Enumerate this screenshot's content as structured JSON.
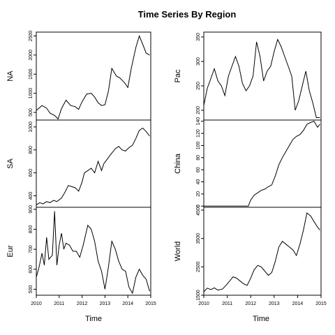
{
  "chart_data": {
    "type": "line",
    "title": "Time Series By Region",
    "xlabel": "Time",
    "xlim": [
      2010,
      2015
    ],
    "x_ticks": [
      2010,
      2011,
      2012,
      2013,
      2014,
      2015
    ],
    "x_tick_labels": [
      "2010",
      "2011",
      "2012",
      "2013",
      "2014",
      "2015"
    ],
    "columns": [
      {
        "panels": [
          {
            "ylabel": "NA",
            "ylim": [
              300,
              2600
            ],
            "y_ticks": [
              500,
              1000,
              1500,
              2000,
              2500
            ],
            "y_tick_labels": [
              "500",
              "1000",
              "1500",
              "2000",
              "2500"
            ],
            "x": [
              2010.0,
              2010.25,
              2010.45,
              2010.6,
              2010.8,
              2010.95,
              2011.1,
              2011.3,
              2011.5,
              2011.7,
              2011.85,
              2012.0,
              2012.2,
              2012.4,
              2012.55,
              2012.7,
              2012.85,
              2013.0,
              2013.15,
              2013.3,
              2013.5,
              2013.65,
              2013.85,
              2014.0,
              2014.15,
              2014.35,
              2014.5,
              2014.65,
              2014.8,
              2014.95
            ],
            "values": [
              550,
              680,
              610,
              480,
              420,
              330,
              600,
              820,
              680,
              650,
              580,
              780,
              980,
              1000,
              900,
              750,
              680,
              700,
              1050,
              1650,
              1450,
              1400,
              1280,
              1150,
              1650,
              2200,
              2500,
              2280,
              2050,
              2000
            ]
          },
          {
            "ylabel": "SA",
            "ylim": [
              300,
              1060
            ],
            "y_ticks": [
              400,
              600,
              800,
              1000
            ],
            "y_tick_labels": [
              "400",
              "600",
              "800",
              "1000"
            ],
            "x": [
              2010.0,
              2010.15,
              2010.3,
              2010.45,
              2010.6,
              2010.75,
              2010.9,
              2011.1,
              2011.25,
              2011.4,
              2011.55,
              2011.7,
              2011.85,
              2012.0,
              2012.1,
              2012.25,
              2012.4,
              2012.55,
              2012.7,
              2012.85,
              2012.95,
              2013.1,
              2013.25,
              2013.45,
              2013.6,
              2013.75,
              2013.9,
              2014.05,
              2014.2,
              2014.35,
              2014.5,
              2014.65,
              2014.8,
              2014.95
            ],
            "values": [
              320,
              340,
              330,
              350,
              340,
              360,
              350,
              380,
              430,
              490,
              480,
              470,
              440,
              520,
              600,
              620,
              640,
              600,
              700,
              620,
              680,
              720,
              760,
              810,
              830,
              800,
              790,
              820,
              840,
              900,
              970,
              990,
              960,
              920
            ]
          },
          {
            "ylabel": "Eur",
            "ylim": [
              470,
              910
            ],
            "y_ticks": [
              500,
              600,
              700,
              800,
              900
            ],
            "y_tick_labels": [
              "500",
              "600",
              "700",
              "800",
              "900"
            ],
            "x": [
              2010.0,
              2010.12,
              2010.25,
              2010.35,
              2010.45,
              2010.55,
              2010.7,
              2010.8,
              2010.9,
              2011.0,
              2011.1,
              2011.2,
              2011.3,
              2011.45,
              2011.6,
              2011.75,
              2011.9,
              2012.05,
              2012.25,
              2012.4,
              2012.55,
              2012.7,
              2012.85,
              2013.0,
              2013.15,
              2013.3,
              2013.45,
              2013.6,
              2013.75,
              2013.9,
              2014.05,
              2014.2,
              2014.35,
              2014.5,
              2014.65,
              2014.8,
              2014.95
            ],
            "values": [
              560,
              610,
              680,
              620,
              760,
              650,
              670,
              890,
              620,
              720,
              780,
              700,
              730,
              720,
              690,
              690,
              660,
              720,
              820,
              800,
              740,
              640,
              590,
              500,
              610,
              740,
              700,
              640,
              600,
              590,
              510,
              480,
              560,
              600,
              570,
              550,
              490
            ]
          }
        ]
      },
      {
        "panels": [
          {
            "ylabel": "Pac",
            "ylim": [
              180,
              360
            ],
            "y_ticks": [
              200,
              250,
              300,
              350
            ],
            "y_tick_labels": [
              "200",
              "250",
              "300",
              "350"
            ],
            "x": [
              2010.0,
              2010.15,
              2010.3,
              2010.45,
              2010.6,
              2010.75,
              2010.9,
              2011.05,
              2011.2,
              2011.35,
              2011.5,
              2011.65,
              2011.8,
              2011.95,
              2012.1,
              2012.25,
              2012.4,
              2012.55,
              2012.7,
              2012.85,
              2013.0,
              2013.15,
              2013.3,
              2013.45,
              2013.6,
              2013.75,
              2013.9,
              2014.05,
              2014.2,
              2014.35,
              2014.5,
              2014.65,
              2014.8,
              2014.95
            ],
            "values": [
              210,
              245,
              265,
              285,
              260,
              250,
              230,
              270,
              290,
              310,
              290,
              255,
              240,
              250,
              270,
              340,
              310,
              260,
              280,
              290,
              320,
              345,
              330,
              310,
              290,
              270,
              200,
              220,
              250,
              280,
              240,
              215,
              185,
              185
            ]
          },
          {
            "ylabel": "China",
            "ylim": [
              -2,
              142
            ],
            "y_ticks": [
              0,
              20,
              40,
              60,
              80,
              100,
              120,
              140
            ],
            "y_tick_labels": [
              "0",
              "20",
              "40",
              "60",
              "80",
              "100",
              "120",
              "140"
            ],
            "x": [
              2010.0,
              2011.5,
              2011.9,
              2012.0,
              2012.15,
              2012.3,
              2012.45,
              2012.6,
              2012.75,
              2012.9,
              2013.05,
              2013.2,
              2013.35,
              2013.5,
              2013.65,
              2013.8,
              2013.95,
              2014.1,
              2014.25,
              2014.4,
              2014.55,
              2014.7,
              2014.85,
              2014.95
            ],
            "values": [
              0,
              0,
              0,
              10,
              18,
              22,
              26,
              28,
              32,
              35,
              50,
              68,
              80,
              90,
              100,
              110,
              115,
              118,
              125,
              135,
              138,
              140,
              130,
              135
            ]
          },
          {
            "ylabel": "World",
            "ylim": [
              1500,
              4600
            ],
            "y_ticks": [
              1500,
              2500,
              3500,
              4500
            ],
            "y_tick_labels": [
              "1500",
              "2500",
              "3500",
              "4500"
            ],
            "x": [
              2010.0,
              2010.15,
              2010.3,
              2010.45,
              2010.6,
              2010.8,
              2010.95,
              2011.1,
              2011.25,
              2011.4,
              2011.55,
              2011.7,
              2011.85,
              2012.0,
              2012.15,
              2012.3,
              2012.45,
              2012.6,
              2012.75,
              2012.9,
              2013.05,
              2013.2,
              2013.35,
              2013.5,
              2013.65,
              2013.8,
              2013.95,
              2014.1,
              2014.25,
              2014.4,
              2014.55,
              2014.7,
              2014.85,
              2014.95
            ],
            "values": [
              1620,
              1750,
              1700,
              1760,
              1680,
              1720,
              1850,
              2000,
              2150,
              2100,
              2000,
              1900,
              1850,
              2100,
              2400,
              2550,
              2500,
              2350,
              2200,
              2300,
              2700,
              3200,
              3400,
              3300,
              3200,
              3100,
              2900,
              3300,
              3800,
              4400,
              4300,
              4100,
              3900,
              3800
            ]
          }
        ]
      }
    ]
  }
}
